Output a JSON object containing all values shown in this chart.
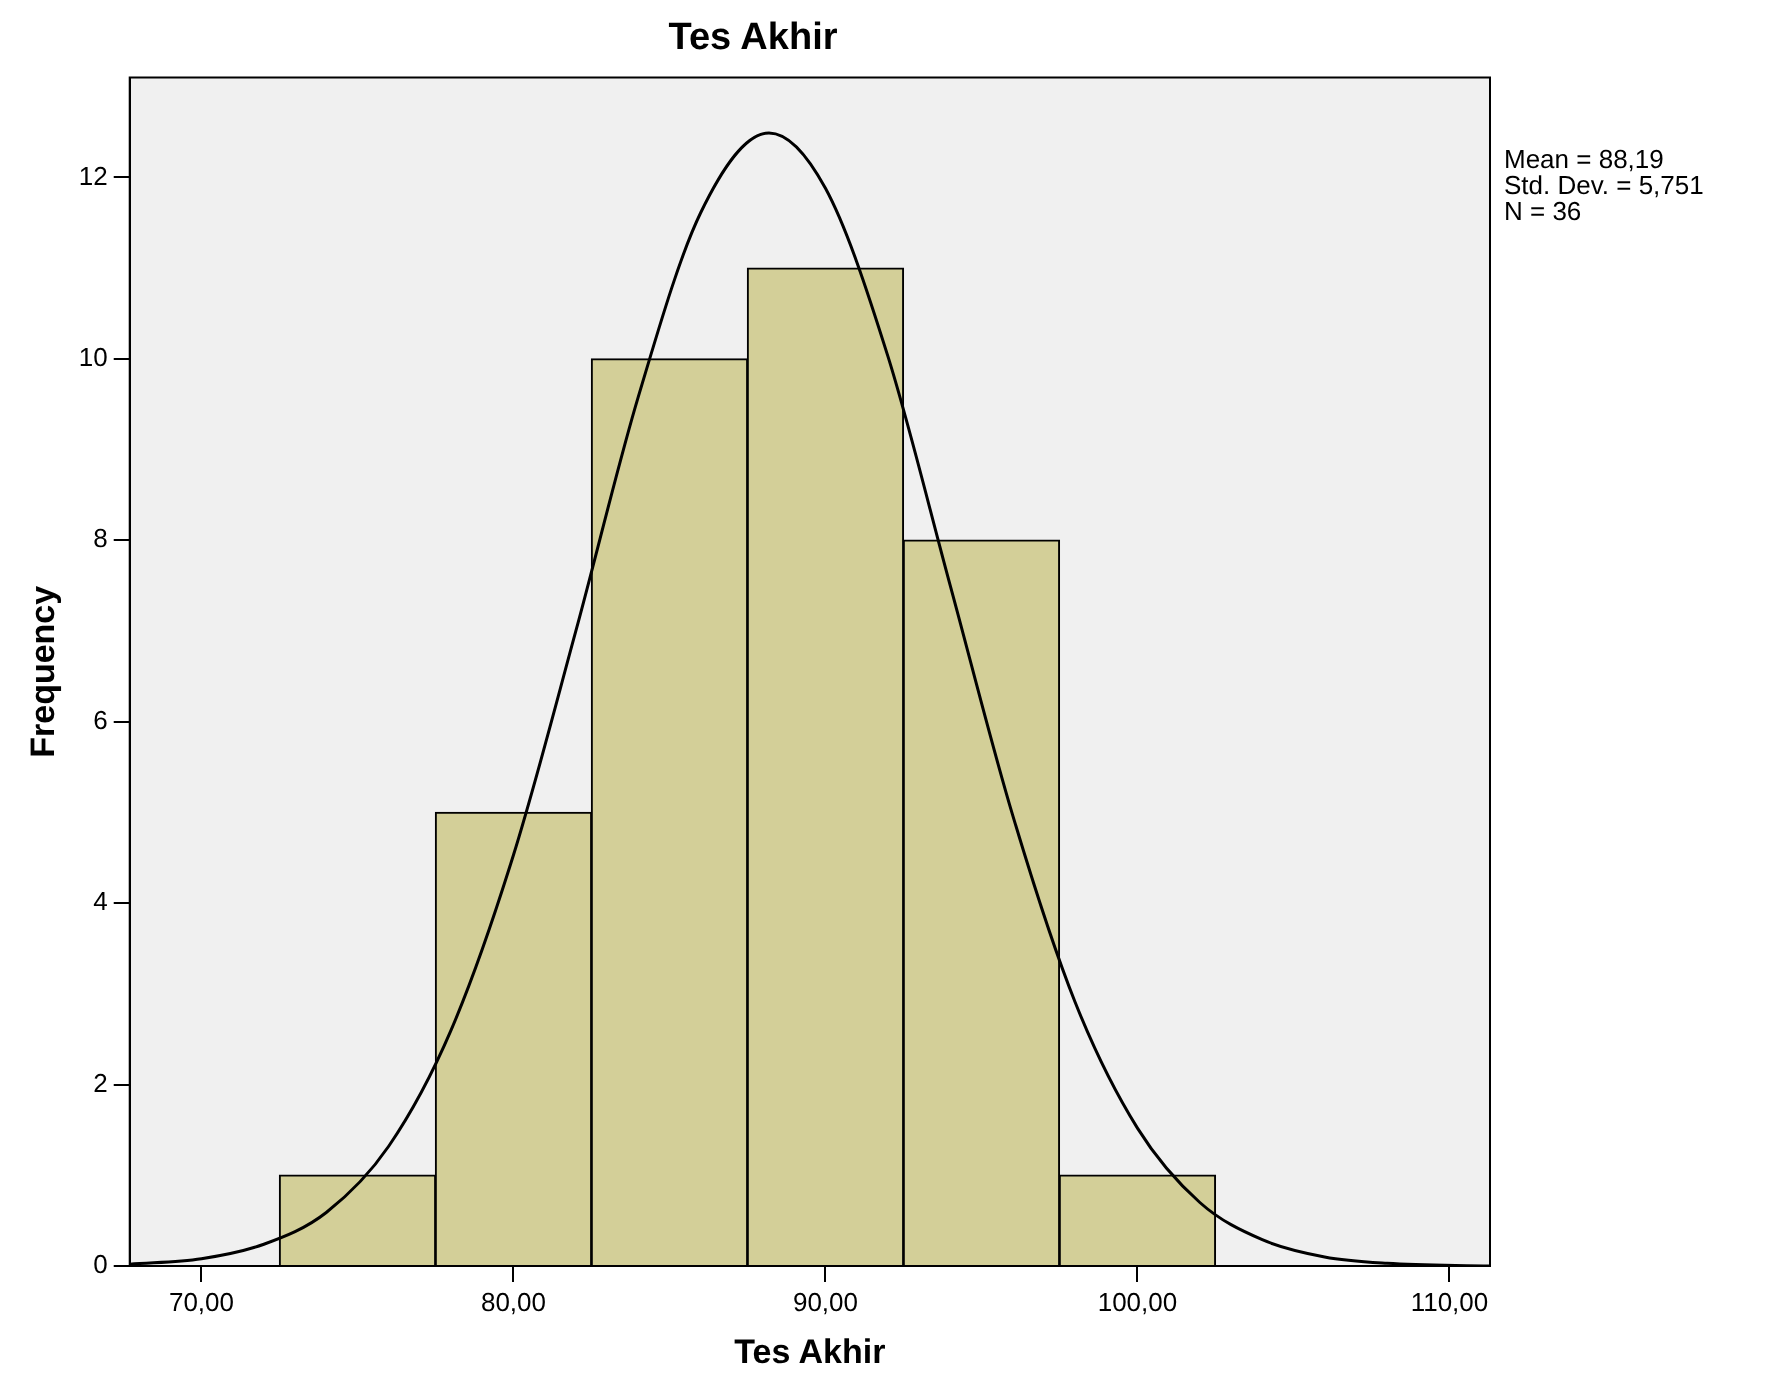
{
  "chart_data": {
    "type": "histogram",
    "title": "Tes Akhir",
    "xlabel": "Tes Akhir",
    "ylabel": "Frequency",
    "bins": [
      72.5,
      77.5,
      82.5,
      87.5,
      92.5,
      97.5,
      102.5
    ],
    "series": [
      {
        "color": "#d3cf98",
        "values": [
          1,
          5,
          10,
          11,
          8,
          1
        ]
      },
      {
        "type": "line",
        "color": "#000000",
        "x": [
          67.7,
          70,
          72,
          74,
          76,
          78,
          80,
          82,
          84,
          86,
          88.19,
          90,
          92,
          94,
          96,
          98,
          100,
          102,
          104,
          106,
          108,
          111.3
        ],
        "values": [
          0.02,
          0.08,
          0.24,
          0.59,
          1.32,
          2.6,
          4.53,
          7.0,
          9.58,
          11.61,
          12.49,
          11.88,
          10.03,
          7.5,
          4.97,
          2.91,
          1.52,
          0.7,
          0.29,
          0.1,
          0.03,
          0.0
        ]
      }
    ],
    "xlim": [
      67.7,
      111.3
    ],
    "xticks": [
      {
        "value": 70,
        "label": "70,00"
      },
      {
        "value": 80,
        "label": "80,00"
      },
      {
        "value": 90,
        "label": "90,00"
      },
      {
        "value": 100,
        "label": "100,00"
      },
      {
        "value": 110,
        "label": "110,00"
      }
    ],
    "ylim": [
      0,
      13.1
    ],
    "yticks": [
      0,
      2,
      4,
      6,
      8,
      10,
      12
    ],
    "annotations": [
      "Mean = 88,19",
      "Std. Dev. = 5,751",
      "N = 36"
    ],
    "grid": false,
    "legend": false,
    "marker": "none"
  }
}
